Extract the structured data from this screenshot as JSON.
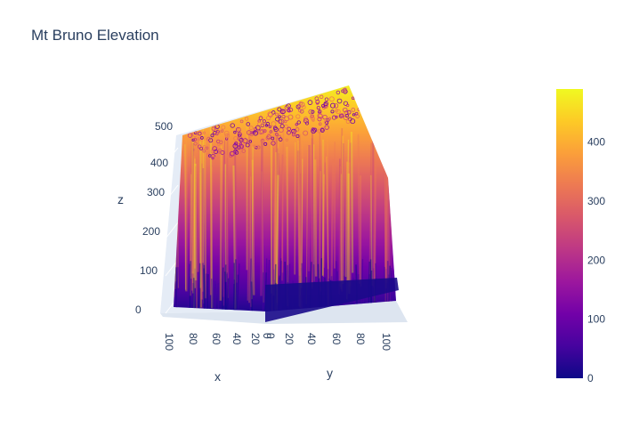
{
  "chart_data": {
    "type": "surface",
    "title": "Mt Bruno Elevation",
    "xlabel": "x",
    "ylabel": "y",
    "zlabel": "z",
    "x_range": [
      0,
      100
    ],
    "y_range": [
      0,
      100
    ],
    "z_range": [
      0,
      500
    ],
    "x_ticks": [
      "100",
      "80",
      "60",
      "40",
      "20",
      "0"
    ],
    "y_ticks": [
      "0",
      "20",
      "40",
      "60",
      "80",
      "100"
    ],
    "z_ticks": [
      "0",
      "100",
      "200",
      "300",
      "400",
      "500"
    ],
    "colorbar": {
      "range": [
        0,
        490
      ],
      "ticks": [
        "0",
        "100",
        "200",
        "300",
        "400"
      ],
      "colorscale": [
        "#0d0887",
        "#46039f",
        "#7201a8",
        "#9c179e",
        "#bd3786",
        "#d8576b",
        "#ed7953",
        "#fb9f3a",
        "#fdca26",
        "#f0f921"
      ]
    },
    "surface_note_values": {
      "z_typical_min": 20,
      "z_typical_max": 470
    }
  }
}
